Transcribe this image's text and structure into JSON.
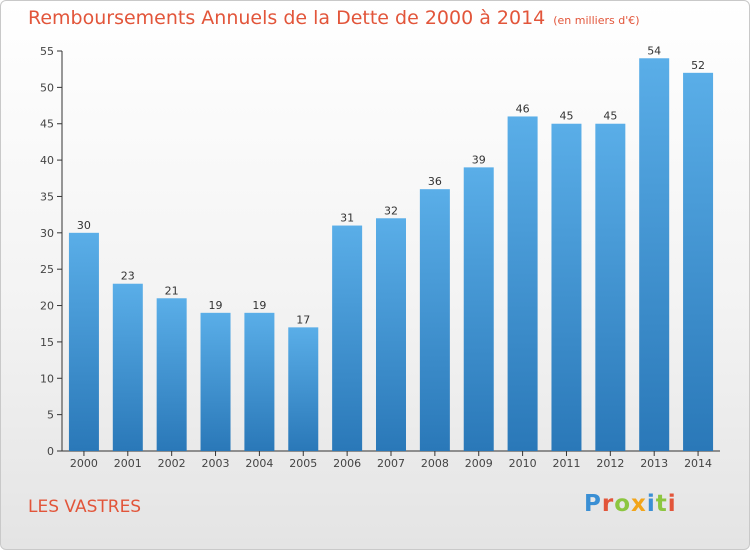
{
  "chart_data": {
    "type": "bar",
    "title": "Remboursements Annuels de la Dette de 2000 à 2014",
    "unit_note": "(en milliers d'€)",
    "categories": [
      "2000",
      "2001",
      "2002",
      "2003",
      "2004",
      "2005",
      "2006",
      "2007",
      "2008",
      "2009",
      "2010",
      "2011",
      "2012",
      "2013",
      "2014"
    ],
    "values": [
      30,
      23,
      21,
      19,
      19,
      17,
      31,
      32,
      36,
      39,
      46,
      45,
      45,
      54,
      52
    ],
    "ylim": [
      0,
      55
    ],
    "yticks": [
      0,
      5,
      10,
      15,
      20,
      25,
      30,
      35,
      40,
      45,
      50,
      55
    ],
    "xlabel": "",
    "ylabel": "",
    "grid": false,
    "bar_color": "#3a8fd4"
  },
  "footer": {
    "location": "LES VASTRES",
    "brand": "Proxiti"
  },
  "colors": {
    "title": "#e2553a",
    "brand_letters": [
      "#3a8fd4",
      "#e2553a",
      "#8cc63f",
      "#f2a51a",
      "#3a8fd4",
      "#8cc63f",
      "#e2553a"
    ]
  }
}
